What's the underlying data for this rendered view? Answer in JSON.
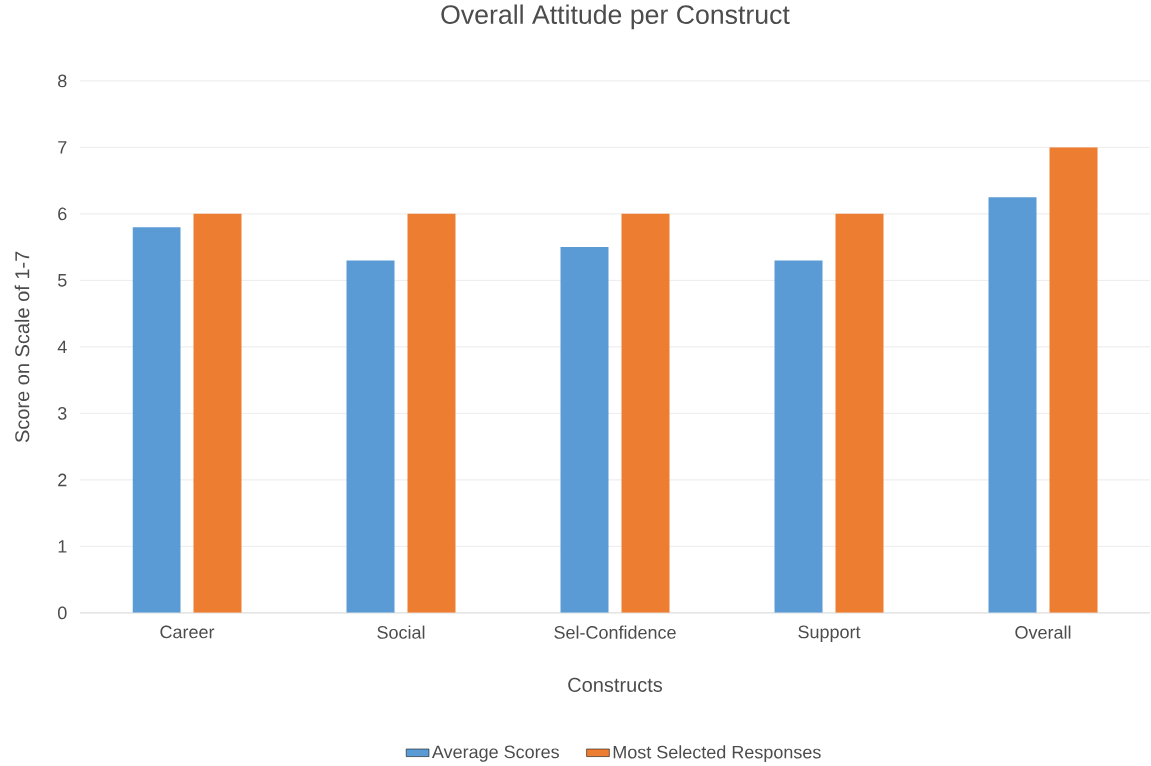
{
  "chart_data": {
    "type": "bar",
    "title": "Overall Attitude per Construct",
    "xlabel": "Constructs",
    "ylabel": "Score on Scale of 1-7",
    "categories": [
      "Career",
      "Social",
      "Sel-Confidence",
      "Support",
      "Overall"
    ],
    "series": [
      {
        "name": "Average Scores",
        "color": "#5b9bd5",
        "values": [
          5.8,
          5.3,
          5.5,
          5.3,
          6.25
        ]
      },
      {
        "name": "Most Selected Responses",
        "color": "#ed7d31",
        "values": [
          6,
          6,
          6,
          6,
          7
        ]
      }
    ],
    "ylim": [
      0,
      8
    ],
    "yticks": [
      0,
      1,
      2,
      3,
      4,
      5,
      6,
      7,
      8
    ],
    "grid": "y",
    "legend": "bottom"
  }
}
